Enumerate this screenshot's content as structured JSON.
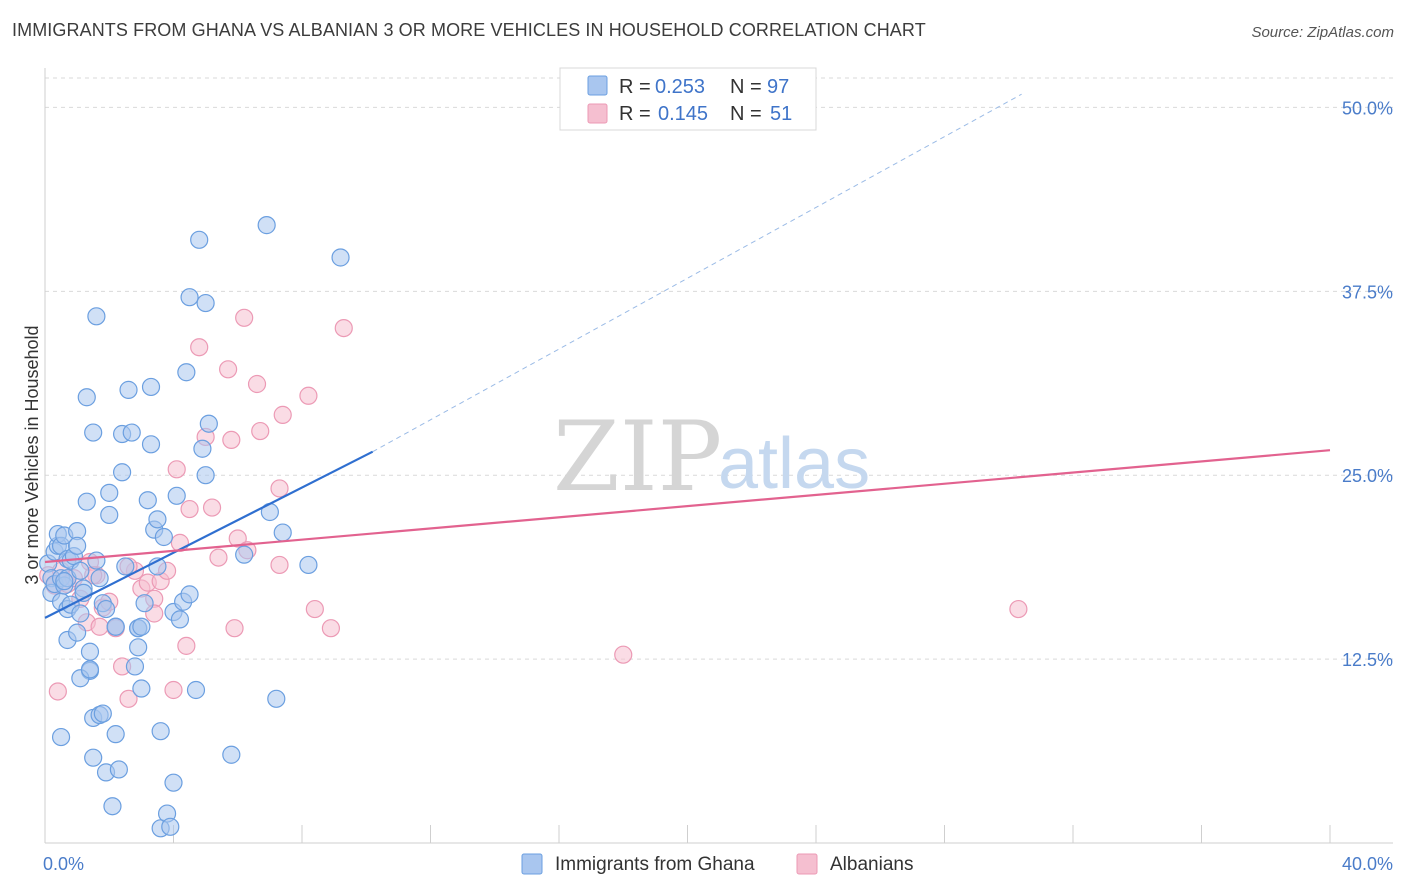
{
  "header": {
    "title": "IMMIGRANTS FROM GHANA VS ALBANIAN 3 OR MORE VEHICLES IN HOUSEHOLD CORRELATION CHART",
    "source": "Source: ZipAtlas.com"
  },
  "watermark": {
    "zip": "ZIP",
    "atlas": "atlas"
  },
  "legend": {
    "rows": [
      {
        "r_label": "R =",
        "r_value": "0.253",
        "n_label": "N =",
        "n_value": "97"
      },
      {
        "r_label": "R =",
        "r_value": "0.145",
        "n_label": "N =",
        "n_value": "51"
      }
    ]
  },
  "colors": {
    "blue_fill": "#a9c6ef",
    "blue_stroke": "#6b9fe0",
    "blue_line": "#2f6fd0",
    "pink_fill": "#f5bfd0",
    "pink_stroke": "#ec9ab5",
    "pink_line": "#e2628f",
    "grid": "#d9d9d9",
    "tick_text": "#4a7cc9"
  },
  "chart_data": {
    "type": "scatter",
    "title": "IMMIGRANTS FROM GHANA VS ALBANIAN 3 OR MORE VEHICLES IN HOUSEHOLD CORRELATION CHART",
    "xlabel": "",
    "ylabel": "3 or more Vehicles in Household",
    "xlim": [
      0,
      40
    ],
    "ylim": [
      0,
      52
    ],
    "x_tick_labels": [
      "0.0%",
      "40.0%"
    ],
    "y_ticks": [
      12.5,
      25.0,
      37.5,
      50.0
    ],
    "y_tick_labels": [
      "12.5%",
      "25.0%",
      "37.5%",
      "50.0%"
    ],
    "grid": true,
    "series": [
      {
        "name": "Immigrants from Ghana",
        "R": 0.253,
        "N": 97,
        "trend": {
          "x0": 0.0,
          "y0": 15.3,
          "x1": 10.2,
          "y1": 26.6,
          "dash_to_x": 30.4,
          "dash_to_y": 50.9
        },
        "points": [
          [
            0.1,
            19.0
          ],
          [
            0.2,
            18.0
          ],
          [
            0.2,
            17.0
          ],
          [
            0.3,
            19.8
          ],
          [
            0.3,
            17.6
          ],
          [
            0.4,
            20.2
          ],
          [
            0.4,
            21.0
          ],
          [
            0.5,
            20.2
          ],
          [
            0.5,
            18.0
          ],
          [
            0.5,
            16.4
          ],
          [
            0.6,
            20.9
          ],
          [
            0.6,
            17.5
          ],
          [
            0.7,
            19.3
          ],
          [
            0.7,
            18.0
          ],
          [
            0.7,
            15.9
          ],
          [
            0.7,
            13.8
          ],
          [
            0.8,
            16.2
          ],
          [
            0.8,
            19.2
          ],
          [
            0.9,
            19.5
          ],
          [
            1.0,
            21.2
          ],
          [
            1.0,
            20.2
          ],
          [
            1.1,
            18.5
          ],
          [
            1.1,
            15.6
          ],
          [
            1.2,
            17.3
          ],
          [
            1.3,
            23.2
          ],
          [
            1.4,
            13.0
          ],
          [
            1.4,
            11.7
          ],
          [
            1.5,
            27.9
          ],
          [
            1.5,
            8.5
          ],
          [
            1.6,
            19.2
          ],
          [
            1.6,
            35.8
          ],
          [
            1.7,
            8.7
          ],
          [
            1.7,
            18.0
          ],
          [
            1.8,
            16.3
          ],
          [
            1.9,
            4.8
          ],
          [
            2.0,
            22.3
          ],
          [
            2.0,
            23.8
          ],
          [
            2.1,
            2.5
          ],
          [
            2.2,
            7.4
          ],
          [
            2.2,
            14.7
          ],
          [
            2.3,
            5.0
          ],
          [
            2.4,
            25.2
          ],
          [
            2.4,
            27.8
          ],
          [
            2.6,
            30.8
          ],
          [
            2.7,
            27.9
          ],
          [
            2.9,
            13.3
          ],
          [
            2.9,
            14.6
          ],
          [
            3.0,
            10.5
          ],
          [
            3.1,
            16.3
          ],
          [
            3.2,
            23.3
          ],
          [
            3.3,
            31.0
          ],
          [
            3.4,
            21.3
          ],
          [
            3.5,
            18.8
          ],
          [
            3.5,
            22.0
          ],
          [
            3.6,
            1.0
          ],
          [
            3.7,
            20.8
          ],
          [
            3.8,
            2.0
          ],
          [
            3.9,
            1.1
          ],
          [
            4.0,
            4.1
          ],
          [
            4.0,
            15.7
          ],
          [
            4.1,
            23.6
          ],
          [
            4.2,
            15.2
          ],
          [
            4.3,
            16.4
          ],
          [
            4.4,
            32.0
          ],
          [
            4.5,
            16.9
          ],
          [
            4.5,
            37.1
          ],
          [
            4.7,
            10.4
          ],
          [
            4.8,
            41.0
          ],
          [
            4.9,
            26.8
          ],
          [
            5.0,
            36.7
          ],
          [
            5.0,
            25.0
          ],
          [
            5.1,
            28.5
          ],
          [
            5.8,
            6.0
          ],
          [
            6.2,
            19.6
          ],
          [
            6.9,
            42.0
          ],
          [
            7.0,
            22.5
          ],
          [
            7.2,
            9.8
          ],
          [
            7.4,
            21.1
          ],
          [
            8.2,
            18.9
          ],
          [
            9.2,
            39.8
          ],
          [
            0.5,
            7.2
          ],
          [
            1.1,
            11.2
          ],
          [
            1.4,
            11.8
          ],
          [
            1.5,
            5.8
          ],
          [
            1.8,
            8.8
          ],
          [
            2.8,
            12.0
          ],
          [
            2.9,
            14.6
          ],
          [
            3.6,
            7.6
          ],
          [
            1.3,
            30.3
          ],
          [
            3.3,
            27.1
          ],
          [
            2.5,
            18.8
          ],
          [
            1.9,
            15.9
          ],
          [
            1.0,
            14.3
          ],
          [
            0.6,
            17.8
          ],
          [
            1.2,
            17.0
          ],
          [
            3.0,
            14.7
          ],
          [
            2.2,
            14.7
          ]
        ]
      },
      {
        "name": "Albanians",
        "R": 0.145,
        "N": 51,
        "trend": {
          "x0": 0.0,
          "y0": 19.1,
          "x1": 40.0,
          "y1": 26.7
        },
        "points": [
          [
            0.1,
            18.2
          ],
          [
            0.3,
            17.5
          ],
          [
            0.4,
            10.3
          ],
          [
            0.5,
            18.5
          ],
          [
            0.7,
            17.6
          ],
          [
            0.9,
            18.0
          ],
          [
            1.1,
            16.6
          ],
          [
            1.3,
            15.0
          ],
          [
            1.4,
            19.1
          ],
          [
            1.6,
            18.2
          ],
          [
            1.7,
            14.7
          ],
          [
            1.8,
            16.0
          ],
          [
            2.0,
            16.4
          ],
          [
            2.2,
            14.6
          ],
          [
            2.4,
            12.0
          ],
          [
            2.6,
            9.8
          ],
          [
            2.8,
            18.5
          ],
          [
            3.0,
            17.3
          ],
          [
            3.2,
            17.7
          ],
          [
            3.4,
            16.6
          ],
          [
            3.6,
            17.8
          ],
          [
            3.8,
            18.5
          ],
          [
            4.0,
            10.4
          ],
          [
            4.1,
            25.4
          ],
          [
            4.2,
            20.4
          ],
          [
            4.4,
            13.4
          ],
          [
            4.5,
            22.7
          ],
          [
            4.8,
            33.7
          ],
          [
            5.0,
            27.6
          ],
          [
            5.2,
            22.8
          ],
          [
            5.4,
            19.4
          ],
          [
            5.7,
            32.2
          ],
          [
            5.8,
            27.4
          ],
          [
            5.9,
            14.6
          ],
          [
            6.0,
            20.7
          ],
          [
            6.3,
            19.9
          ],
          [
            6.2,
            35.7
          ],
          [
            6.6,
            31.2
          ],
          [
            6.7,
            28.0
          ],
          [
            7.3,
            24.1
          ],
          [
            7.3,
            18.9
          ],
          [
            7.4,
            29.1
          ],
          [
            8.2,
            30.4
          ],
          [
            8.4,
            15.9
          ],
          [
            8.9,
            14.6
          ],
          [
            9.3,
            35.0
          ],
          [
            18.0,
            12.8
          ],
          [
            30.3,
            15.9
          ],
          [
            2.6,
            18.8
          ],
          [
            3.4,
            15.6
          ],
          [
            1.5,
            18.2
          ]
        ]
      }
    ]
  },
  "bottom_legend": {
    "items": [
      {
        "label": "Immigrants from Ghana"
      },
      {
        "label": "Albanians"
      }
    ]
  }
}
